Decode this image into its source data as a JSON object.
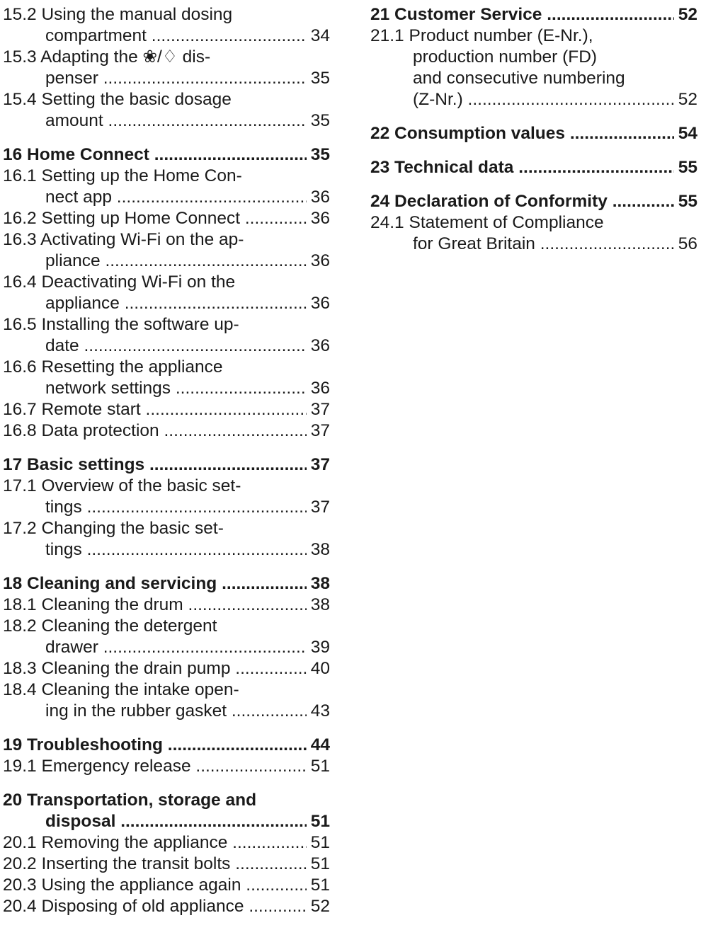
{
  "left_column": [
    {
      "level": "section",
      "lines": [
        "15.2 Using the manual dosing",
        "compartment"
      ],
      "page": "34"
    },
    {
      "level": "section",
      "lines": [
        "15.3 Adapting the ❀/♢ dis-",
        "penser"
      ],
      "page": "35"
    },
    {
      "level": "section",
      "lines": [
        "15.4 Setting the basic dosage",
        "amount"
      ],
      "page": "35"
    },
    {
      "level": "chapter",
      "lines": [
        "16 Home Connect"
      ],
      "page": "35"
    },
    {
      "level": "section",
      "lines": [
        "16.1 Setting up the Home Con-",
        "nect app"
      ],
      "page": "36"
    },
    {
      "level": "section",
      "lines": [
        "16.2 Setting up Home Connect"
      ],
      "page": "36"
    },
    {
      "level": "section",
      "lines": [
        "16.3 Activating Wi-Fi on the ap-",
        "pliance"
      ],
      "page": "36"
    },
    {
      "level": "section",
      "lines": [
        "16.4 Deactivating Wi-Fi on the",
        "appliance"
      ],
      "page": "36"
    },
    {
      "level": "section",
      "lines": [
        "16.5 Installing the software up-",
        "date"
      ],
      "page": "36"
    },
    {
      "level": "section",
      "lines": [
        "16.6 Resetting the appliance",
        "network settings"
      ],
      "page": "36"
    },
    {
      "level": "section",
      "lines": [
        "16.7 Remote start"
      ],
      "page": "37"
    },
    {
      "level": "section",
      "lines": [
        "16.8 Data protection"
      ],
      "page": "37"
    },
    {
      "level": "chapter",
      "lines": [
        "17 Basic settings"
      ],
      "page": "37"
    },
    {
      "level": "section",
      "lines": [
        "17.1 Overview of the basic set-",
        "tings"
      ],
      "page": "37"
    },
    {
      "level": "section",
      "lines": [
        "17.2 Changing the basic set-",
        "tings"
      ],
      "page": "38"
    },
    {
      "level": "chapter",
      "lines": [
        "18 Cleaning and servicing"
      ],
      "page": "38"
    },
    {
      "level": "section",
      "lines": [
        "18.1 Cleaning the drum"
      ],
      "page": "38"
    },
    {
      "level": "section",
      "lines": [
        "18.2 Cleaning the detergent",
        "drawer"
      ],
      "page": "39"
    },
    {
      "level": "section",
      "lines": [
        "18.3 Cleaning the drain pump"
      ],
      "page": "40"
    },
    {
      "level": "section",
      "lines": [
        "18.4 Cleaning the intake open-",
        "ing in the rubber gasket"
      ],
      "page": "43"
    },
    {
      "level": "chapter",
      "lines": [
        "19 Troubleshooting"
      ],
      "page": "44"
    },
    {
      "level": "section",
      "lines": [
        "19.1 Emergency release"
      ],
      "page": "51"
    },
    {
      "level": "chapter",
      "lines": [
        "20 Transportation, storage and",
        "disposal"
      ],
      "page": "51"
    },
    {
      "level": "section",
      "lines": [
        "20.1 Removing the appliance"
      ],
      "page": "51"
    },
    {
      "level": "section",
      "lines": [
        "20.2 Inserting the transit bolts"
      ],
      "page": "51"
    },
    {
      "level": "section",
      "lines": [
        "20.3 Using the appliance again"
      ],
      "page": "51"
    },
    {
      "level": "section",
      "lines": [
        "20.4 Disposing of old appliance"
      ],
      "page": "52"
    }
  ],
  "right_column": [
    {
      "level": "chapter",
      "lines": [
        "21 Customer Service"
      ],
      "page": "52"
    },
    {
      "level": "section",
      "lines": [
        "21.1 Product number (E-Nr.),",
        "production number (FD)",
        "and consecutive numbering",
        "(Z-Nr.)"
      ],
      "page": "52"
    },
    {
      "level": "chapter",
      "lines": [
        "22 Consumption values"
      ],
      "page": "54"
    },
    {
      "level": "chapter",
      "lines": [
        "23 Technical data"
      ],
      "page": "55"
    },
    {
      "level": "chapter",
      "lines": [
        "24 Declaration of Conformity"
      ],
      "page": "55"
    },
    {
      "level": "section",
      "lines": [
        "24.1 Statement of Compliance",
        "for Great Britain"
      ],
      "page": "56"
    }
  ]
}
